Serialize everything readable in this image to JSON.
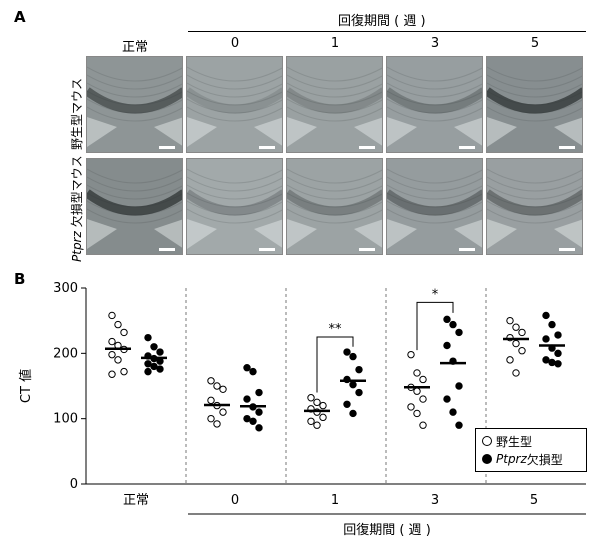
{
  "panel_a": {
    "letter": "A",
    "recovery_header": "回復期間 ( 週 )",
    "columns": [
      "正常",
      "0",
      "1",
      "3",
      "5"
    ],
    "row_labels": [
      {
        "prefix": "",
        "prefix_italic": "",
        "text": "野生型マウス"
      },
      {
        "prefix": "Ptprz",
        "text": " 欠損型マウス"
      }
    ]
  },
  "panel_b": {
    "letter": "B",
    "y_axis_label": "CT 値",
    "x_axis_title": "回復期間 ( 週 )",
    "legend": {
      "wild": "野生型",
      "ko_prefix": "Ptprz",
      "ko_suffix": " 欠損型"
    },
    "significance": [
      {
        "group": "1",
        "text": "**"
      },
      {
        "group": "3",
        "text": "*"
      }
    ]
  },
  "chart_data": {
    "type": "scatter",
    "ylabel": "CT 値",
    "xlabel": "回復期間 ( 週 )",
    "ylim": [
      0,
      300
    ],
    "yticks": [
      0,
      100,
      200,
      300
    ],
    "categories": [
      "正常",
      "0",
      "1",
      "3",
      "5"
    ],
    "series": [
      {
        "name": "野生型",
        "marker": "open-circle",
        "points": [
          [
            258,
            244,
            232,
            218,
            212,
            206,
            198,
            190,
            172,
            168
          ],
          [
            158,
            150,
            145,
            128,
            120,
            110,
            100,
            92
          ],
          [
            132,
            125,
            120,
            115,
            110,
            102,
            96,
            90
          ],
          [
            198,
            170,
            160,
            148,
            142,
            130,
            118,
            108,
            90
          ],
          [
            250,
            240,
            232,
            224,
            215,
            204,
            190,
            170
          ]
        ],
        "means": [
          207,
          121,
          112,
          148,
          222
        ]
      },
      {
        "name": "Ptprz 欠損型",
        "marker": "filled-circle",
        "points": [
          [
            224,
            210,
            202,
            196,
            192,
            188,
            184,
            180,
            176,
            172
          ],
          [
            178,
            172,
            140,
            130,
            118,
            110,
            100,
            96,
            86
          ],
          [
            202,
            195,
            175,
            160,
            152,
            140,
            122,
            108
          ],
          [
            252,
            244,
            232,
            212,
            188,
            150,
            130,
            110,
            90
          ],
          [
            258,
            244,
            228,
            222,
            208,
            200,
            190,
            186,
            184
          ]
        ],
        "means": [
          193,
          119,
          158,
          185,
          212
        ]
      }
    ]
  }
}
